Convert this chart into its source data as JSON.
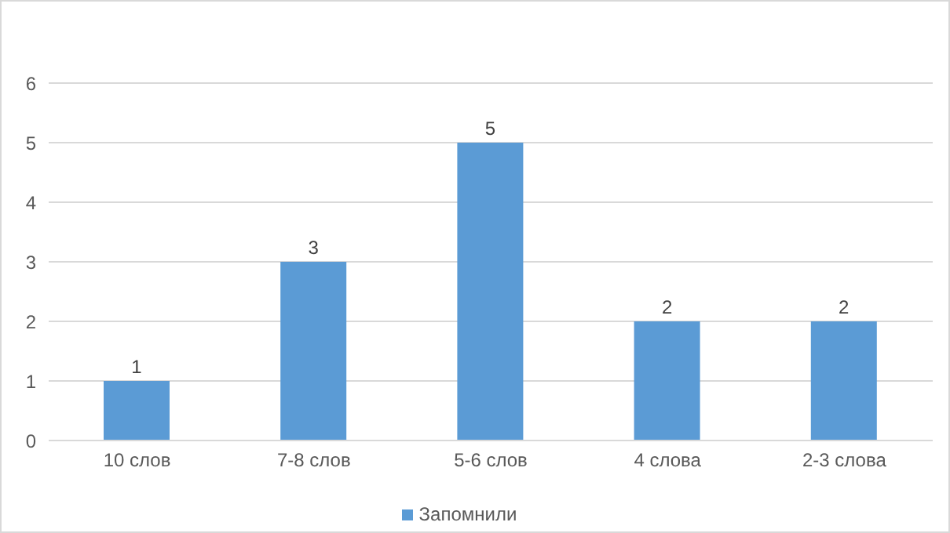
{
  "chart_data": {
    "type": "bar",
    "categories": [
      "10 слов",
      "7-8 слов",
      "5-6 слов",
      "4 слова",
      "2-3 слова"
    ],
    "series": [
      {
        "name": "Запомнили",
        "color": "#5b9bd5",
        "values": [
          1,
          3,
          5,
          2,
          2
        ]
      }
    ],
    "ylim": [
      0,
      6
    ],
    "yticks": [
      0,
      1,
      2,
      3,
      4,
      5,
      6
    ],
    "grid": "y",
    "legend": "bottom",
    "data_labels": true
  }
}
